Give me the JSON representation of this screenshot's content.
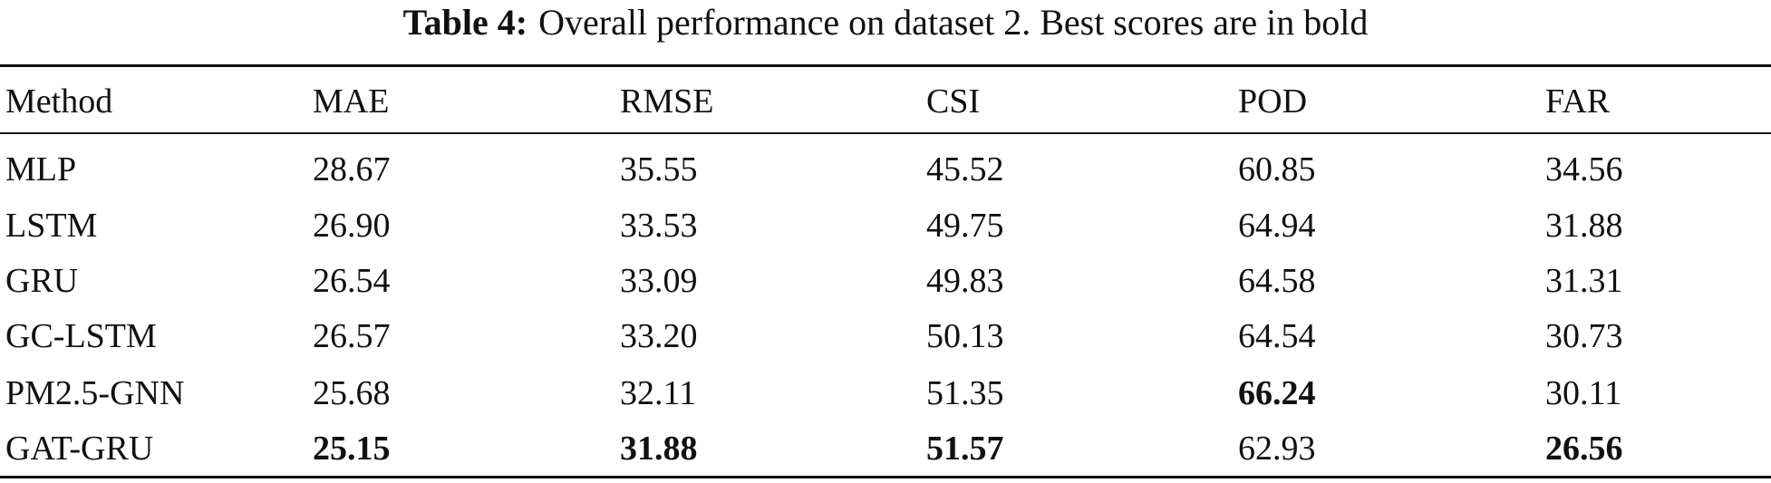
{
  "caption": {
    "label": "Table 4:",
    "text": "Overall performance on dataset 2. Best scores are in bold"
  },
  "table": {
    "header": [
      "Method",
      "MAE",
      "RMSE",
      "CSI",
      "POD",
      "FAR"
    ],
    "rows": [
      [
        "MLP",
        "28.67",
        "35.55",
        "45.52",
        "60.85",
        "34.56"
      ],
      [
        "LSTM",
        "26.90",
        "33.53",
        "49.75",
        "64.94",
        "31.88"
      ],
      [
        "GRU",
        "26.54",
        "33.09",
        "49.83",
        "64.58",
        "31.31"
      ],
      [
        "GC-LSTM",
        "26.57",
        "33.20",
        "50.13",
        "64.54",
        "30.73"
      ],
      [
        "PM2.5-GNN",
        "25.68",
        "32.11",
        "51.35",
        "66.24",
        "30.11"
      ],
      [
        "GAT-GRU",
        "25.15",
        "31.88",
        "51.57",
        "62.93",
        "26.56"
      ]
    ],
    "bold_cells": [
      [
        4,
        4
      ],
      [
        5,
        1
      ],
      [
        5,
        2
      ],
      [
        5,
        3
      ],
      [
        5,
        5
      ]
    ]
  }
}
